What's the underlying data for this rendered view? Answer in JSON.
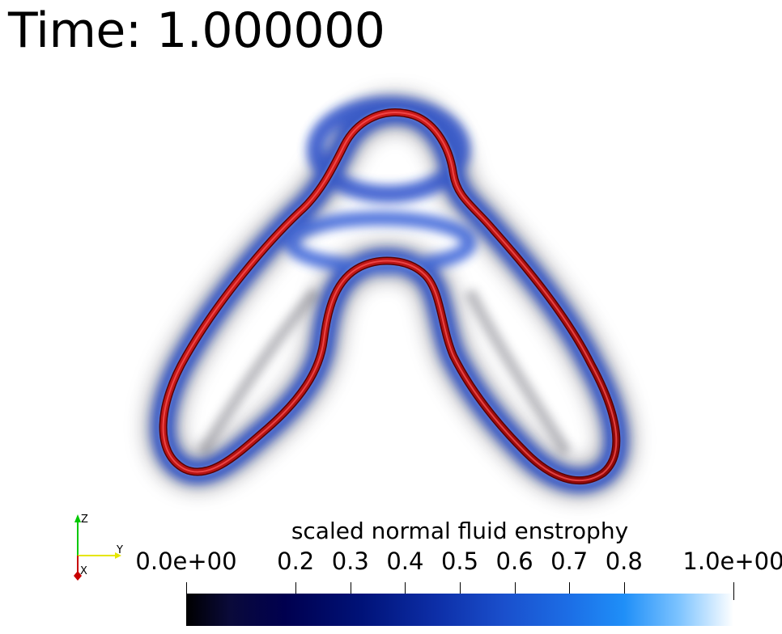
{
  "title": "Time: 1.000000",
  "colorbar": {
    "title": "scaled normal fluid enstrophy",
    "ticks": [
      {
        "label": "0.0e+00",
        "value": 0.0
      },
      {
        "label": "0.2",
        "value": 0.2
      },
      {
        "label": "0.3",
        "value": 0.3
      },
      {
        "label": "0.4",
        "value": 0.4
      },
      {
        "label": "0.5",
        "value": 0.5
      },
      {
        "label": "0.6",
        "value": 0.6
      },
      {
        "label": "0.7",
        "value": 0.7
      },
      {
        "label": "0.8",
        "value": 0.8
      },
      {
        "label": "1.0e+00",
        "value": 1.0
      }
    ]
  },
  "orientation_axes": {
    "z_label": "Z",
    "y_label": "Y",
    "x_label": "X",
    "z_color": "#00c800",
    "y_color": "#e6e600",
    "x_color": "#c80000"
  },
  "colors": {
    "vortex_tube": "#cc1010",
    "vortex_tube_dark": "#6a0000",
    "enstrophy_blue": "#1a3fc8",
    "enstrophy_dark": "#00003a"
  }
}
